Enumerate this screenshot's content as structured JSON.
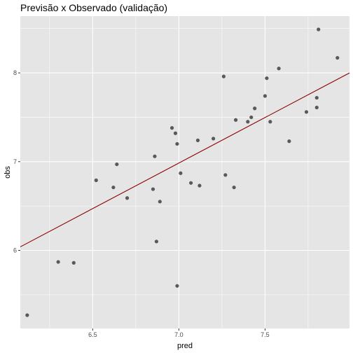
{
  "chart_data": {
    "type": "scatter",
    "title": "Previsão x Observado (validação)",
    "xlabel": "pred",
    "ylabel": "obs",
    "xlim": [
      6.08,
      7.99
    ],
    "ylim": [
      5.12,
      8.64
    ],
    "x_ticks": [
      6.5,
      7.0,
      7.5
    ],
    "x_tick_labels": [
      "6.5",
      "7.0",
      "7.5"
    ],
    "y_ticks": [
      6,
      7,
      8
    ],
    "y_tick_labels": [
      "6",
      "7",
      "8"
    ],
    "grid": true,
    "panel_background": "#e5e5e5",
    "grid_color": "#ffffff",
    "point_color": "#595959",
    "line_color": "#8b0000",
    "points": [
      {
        "x": 6.12,
        "y": 5.27
      },
      {
        "x": 6.3,
        "y": 5.87
      },
      {
        "x": 6.39,
        "y": 5.86
      },
      {
        "x": 6.52,
        "y": 6.79
      },
      {
        "x": 6.62,
        "y": 6.71
      },
      {
        "x": 6.64,
        "y": 6.97
      },
      {
        "x": 6.7,
        "y": 6.59
      },
      {
        "x": 6.85,
        "y": 6.69
      },
      {
        "x": 6.86,
        "y": 7.06
      },
      {
        "x": 6.87,
        "y": 6.1
      },
      {
        "x": 6.89,
        "y": 6.55
      },
      {
        "x": 6.96,
        "y": 7.38
      },
      {
        "x": 6.98,
        "y": 7.32
      },
      {
        "x": 6.99,
        "y": 5.6
      },
      {
        "x": 6.99,
        "y": 7.2
      },
      {
        "x": 7.01,
        "y": 6.87
      },
      {
        "x": 7.07,
        "y": 6.76
      },
      {
        "x": 7.11,
        "y": 7.24
      },
      {
        "x": 7.12,
        "y": 6.73
      },
      {
        "x": 7.2,
        "y": 7.26
      },
      {
        "x": 7.26,
        "y": 7.96
      },
      {
        "x": 7.27,
        "y": 6.85
      },
      {
        "x": 7.32,
        "y": 6.71
      },
      {
        "x": 7.33,
        "y": 7.47
      },
      {
        "x": 7.4,
        "y": 7.45
      },
      {
        "x": 7.42,
        "y": 7.5
      },
      {
        "x": 7.44,
        "y": 7.6
      },
      {
        "x": 7.5,
        "y": 7.74
      },
      {
        "x": 7.51,
        "y": 7.94
      },
      {
        "x": 7.53,
        "y": 7.45
      },
      {
        "x": 7.58,
        "y": 8.05
      },
      {
        "x": 7.64,
        "y": 7.23
      },
      {
        "x": 7.74,
        "y": 7.56
      },
      {
        "x": 7.8,
        "y": 7.61
      },
      {
        "x": 7.8,
        "y": 7.72
      },
      {
        "x": 7.81,
        "y": 8.49
      },
      {
        "x": 7.92,
        "y": 8.17
      }
    ],
    "fit_line": [
      {
        "x": 6.08,
        "y": 6.04
      },
      {
        "x": 7.99,
        "y": 8.0
      }
    ]
  }
}
